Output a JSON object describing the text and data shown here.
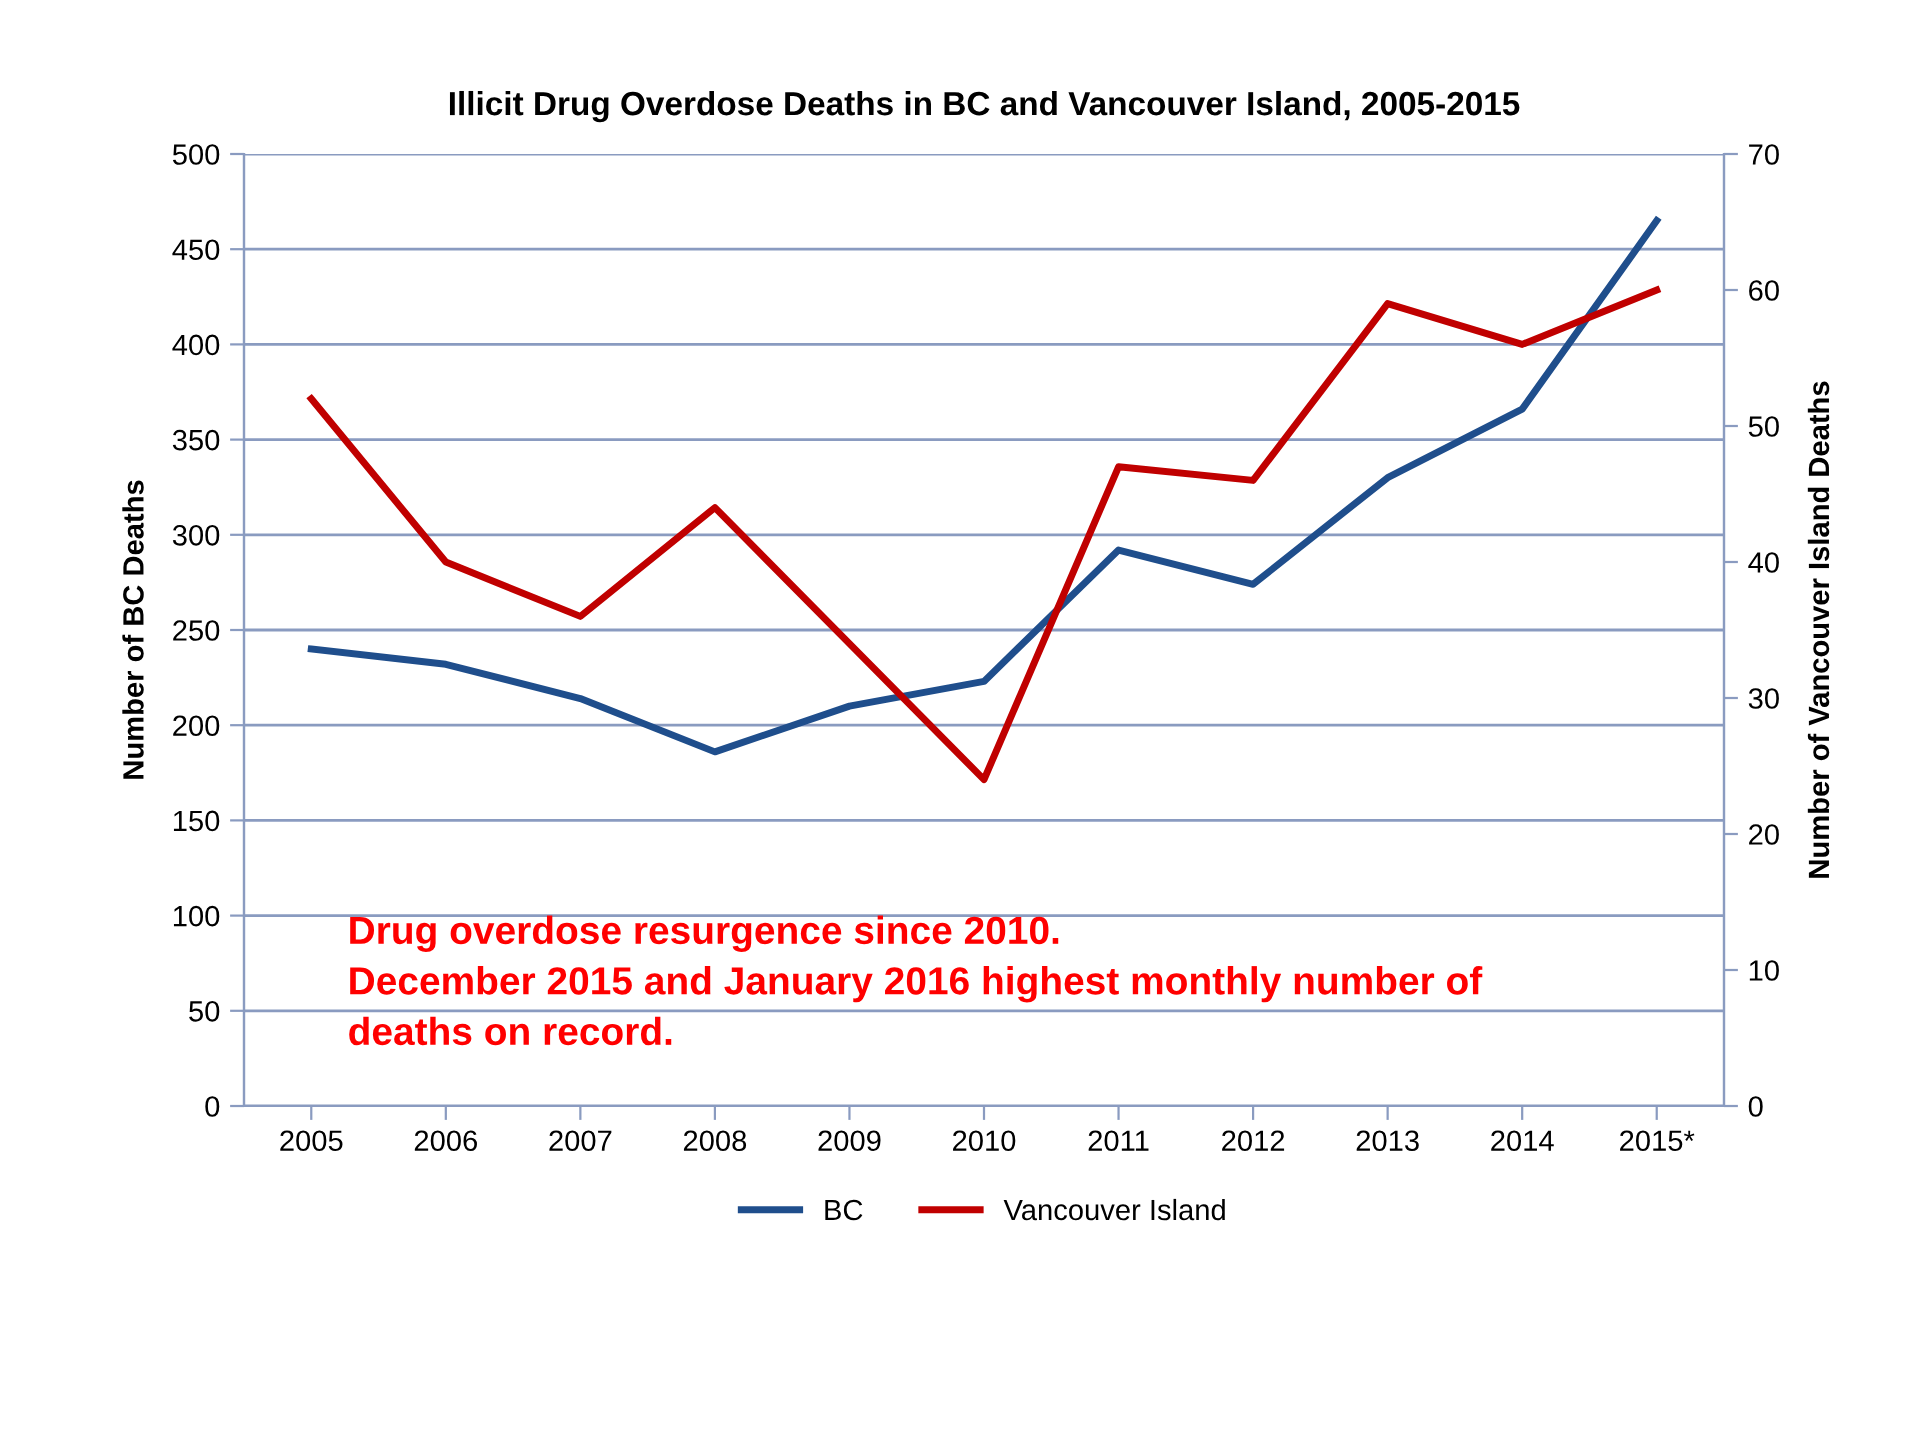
{
  "chart_data": {
    "type": "line",
    "title": "Illicit Drug Overdose Deaths in BC and Vancouver Island, 2005-2015",
    "categories": [
      "2005",
      "2006",
      "2007",
      "2008",
      "2009",
      "2010",
      "2011",
      "2012",
      "2013",
      "2014",
      "2015*"
    ],
    "series": [
      {
        "name": "BC",
        "color": "#1f4e8c",
        "values": [
          240,
          232,
          214,
          186,
          210,
          223,
          292,
          274,
          330,
          366,
          465
        ]
      },
      {
        "name": "Vancouver Island",
        "color": "#c00000",
        "axis": "y2",
        "values": [
          52,
          40,
          36,
          44,
          34,
          24,
          47,
          46,
          59,
          56,
          60
        ]
      }
    ],
    "ylabel": "Number of BC Deaths",
    "y2label": "Number of Vancouver Island Deaths",
    "ylim": [
      0,
      500
    ],
    "yticks": [
      0,
      50,
      100,
      150,
      200,
      250,
      300,
      350,
      400,
      450,
      500
    ],
    "y2lim": [
      0,
      70
    ],
    "y2ticks": [
      0,
      10,
      20,
      30,
      40,
      50,
      60,
      70
    ],
    "grid": "y",
    "legend": "bottom",
    "marker": "none",
    "line_style": "solid",
    "annotations": [
      "Drug overdose resurgence since 2010.\nDecember 2015 and January 2016 highest monthly number of\ndeaths on record."
    ]
  }
}
